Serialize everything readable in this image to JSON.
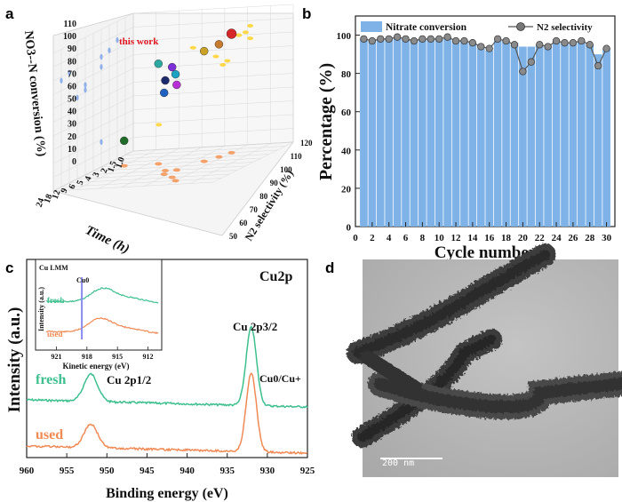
{
  "panels": {
    "a": "a",
    "b": "b",
    "c": "c",
    "d": "d"
  },
  "chart_data": [
    {
      "panel": "a",
      "type": "scatter",
      "title": "",
      "xlabel": "Time (h)",
      "ylabel": "NO3--N conversion (%)",
      "zlabel": "N2 selectivity (%)",
      "x_ticks": [
        "1.0",
        "1.5",
        "2",
        "3",
        "4",
        "5",
        "6",
        "9",
        "12",
        "18",
        "24"
      ],
      "y_ticks": [
        "0",
        "10",
        "20",
        "30",
        "40",
        "50",
        "60",
        "70",
        "80",
        "90",
        "100",
        "110"
      ],
      "z_ticks": [
        "50",
        "60",
        "70",
        "80",
        "90",
        "100",
        "110",
        "120"
      ],
      "annotation": "this work",
      "points": [
        {
          "x": 2,
          "z": 100,
          "y": 95,
          "color": "#d62728"
        },
        {
          "x": 3,
          "z": 98,
          "y": 90,
          "color": "#c77b2d"
        },
        {
          "x": 4,
          "z": 95,
          "y": 88,
          "color": "#c9a227"
        },
        {
          "x": 4,
          "z": 75,
          "y": 80,
          "color": "#2ca9a0"
        },
        {
          "x": 6,
          "z": 85,
          "y": 72,
          "color": "#1a2a6c"
        },
        {
          "x": 6,
          "z": 90,
          "y": 68,
          "color": "#b72fd6"
        },
        {
          "x": 9,
          "z": 88,
          "y": 65,
          "color": "#2060c0"
        },
        {
          "x": 12,
          "z": 95,
          "y": 88,
          "color": "#7b2fd6"
        },
        {
          "x": 18,
          "z": 100,
          "y": 85,
          "color": "#1ca2c2"
        },
        {
          "x": 4,
          "z": 60,
          "y": 20,
          "color": "#1f6b2a"
        }
      ]
    },
    {
      "panel": "b",
      "type": "bar",
      "title": "",
      "xlabel": "Cycle number",
      "ylabel": "Percentage (%)",
      "x_ticks": [
        0,
        2,
        4,
        6,
        8,
        10,
        12,
        14,
        16,
        18,
        20,
        22,
        24,
        26,
        28,
        30
      ],
      "y_ticks": [
        0,
        20,
        40,
        60,
        80,
        100
      ],
      "ylim": [
        0,
        110
      ],
      "xlim": [
        0,
        31
      ],
      "categories": [
        1,
        2,
        3,
        4,
        5,
        6,
        7,
        8,
        9,
        10,
        11,
        12,
        13,
        14,
        15,
        16,
        17,
        18,
        19,
        20,
        21,
        22,
        23,
        24,
        25,
        26,
        27,
        28,
        29,
        30
      ],
      "series": [
        {
          "name": "Nitrate conversion",
          "kind": "bar",
          "color": "#7fb3e8",
          "values": [
            98,
            97,
            98,
            98,
            99,
            98,
            97,
            98,
            98,
            98,
            99,
            97,
            97,
            96,
            93,
            92,
            97,
            97,
            96,
            94,
            94,
            95,
            94,
            97,
            96,
            96,
            97,
            95,
            90,
            93
          ]
        },
        {
          "name": "N2 selectivity",
          "kind": "line",
          "color": "#555555",
          "values": [
            98,
            97,
            98,
            98,
            99,
            98,
            97,
            98,
            98,
            98,
            99,
            97,
            97,
            96,
            94,
            93,
            98,
            97,
            95,
            81,
            86,
            95,
            94,
            97,
            96,
            96,
            97,
            95,
            84,
            93
          ]
        }
      ],
      "legend": "top"
    },
    {
      "panel": "c",
      "type": "line",
      "title": "Cu2p",
      "xlabel": "Binding energy (eV)",
      "ylabel": "Intensity (a.u.)",
      "x_ticks": [
        960,
        955,
        950,
        945,
        940,
        935,
        930,
        925
      ],
      "xlim": [
        960,
        925
      ],
      "annotations": [
        "Cu 2p3/2",
        "Cu 2p1/2",
        "Cu0/Cu+"
      ],
      "series": [
        {
          "name": "fresh",
          "color": "#3dbf8e",
          "peaks": [
            {
              "x": 952,
              "h": 0.35
            },
            {
              "x": 932,
              "h": 1.0
            }
          ]
        },
        {
          "name": "used",
          "color": "#f08a55",
          "peaks": [
            {
              "x": 952,
              "h": 0.3
            },
            {
              "x": 932,
              "h": 1.0
            }
          ]
        }
      ],
      "inset": {
        "title": "Cu LMM",
        "xlabel": "Kinetic energy (eV)",
        "ylabel": "Intensity (a.u.)",
        "x_ticks": [
          921,
          918,
          915,
          912
        ],
        "xlim": [
          922,
          911
        ],
        "marker_label": "Cu0",
        "marker_x": 918.5,
        "series": [
          {
            "name": "fresh",
            "color": "#3dbf8e",
            "peak_x": 916.5
          },
          {
            "name": "used",
            "color": "#f08a55",
            "peak_x": 916.8
          }
        ]
      }
    }
  ],
  "tem": {
    "scale_label": "200 nm"
  }
}
